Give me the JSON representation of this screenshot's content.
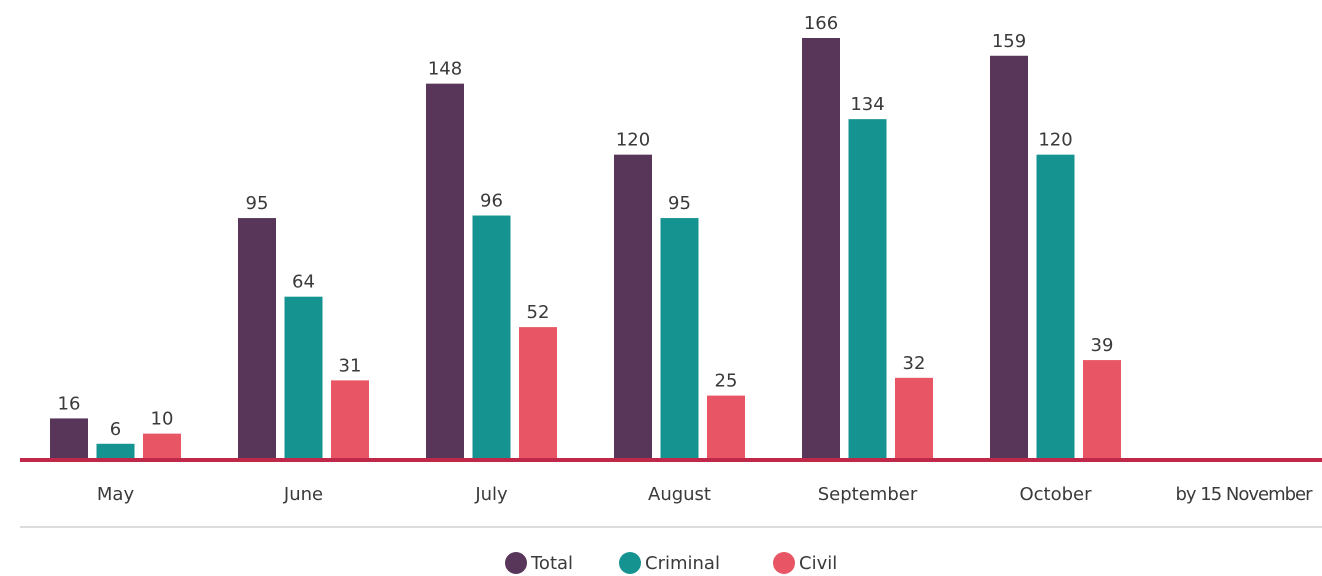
{
  "chart_data": {
    "type": "bar",
    "categories": [
      "May",
      "June",
      "July",
      "August",
      "September",
      "October",
      "by 15 November"
    ],
    "series": [
      {
        "name": "Total",
        "color": "#58365a",
        "values": [
          16,
          95,
          148,
          120,
          166,
          159,
          null
        ]
      },
      {
        "name": "Criminal",
        "color": "#149390",
        "values": [
          6,
          64,
          96,
          95,
          134,
          120,
          null
        ]
      },
      {
        "name": "Civil",
        "color": "#e85565",
        "values": [
          10,
          31,
          52,
          25,
          32,
          39,
          null
        ]
      }
    ],
    "legend": "bottom"
  }
}
